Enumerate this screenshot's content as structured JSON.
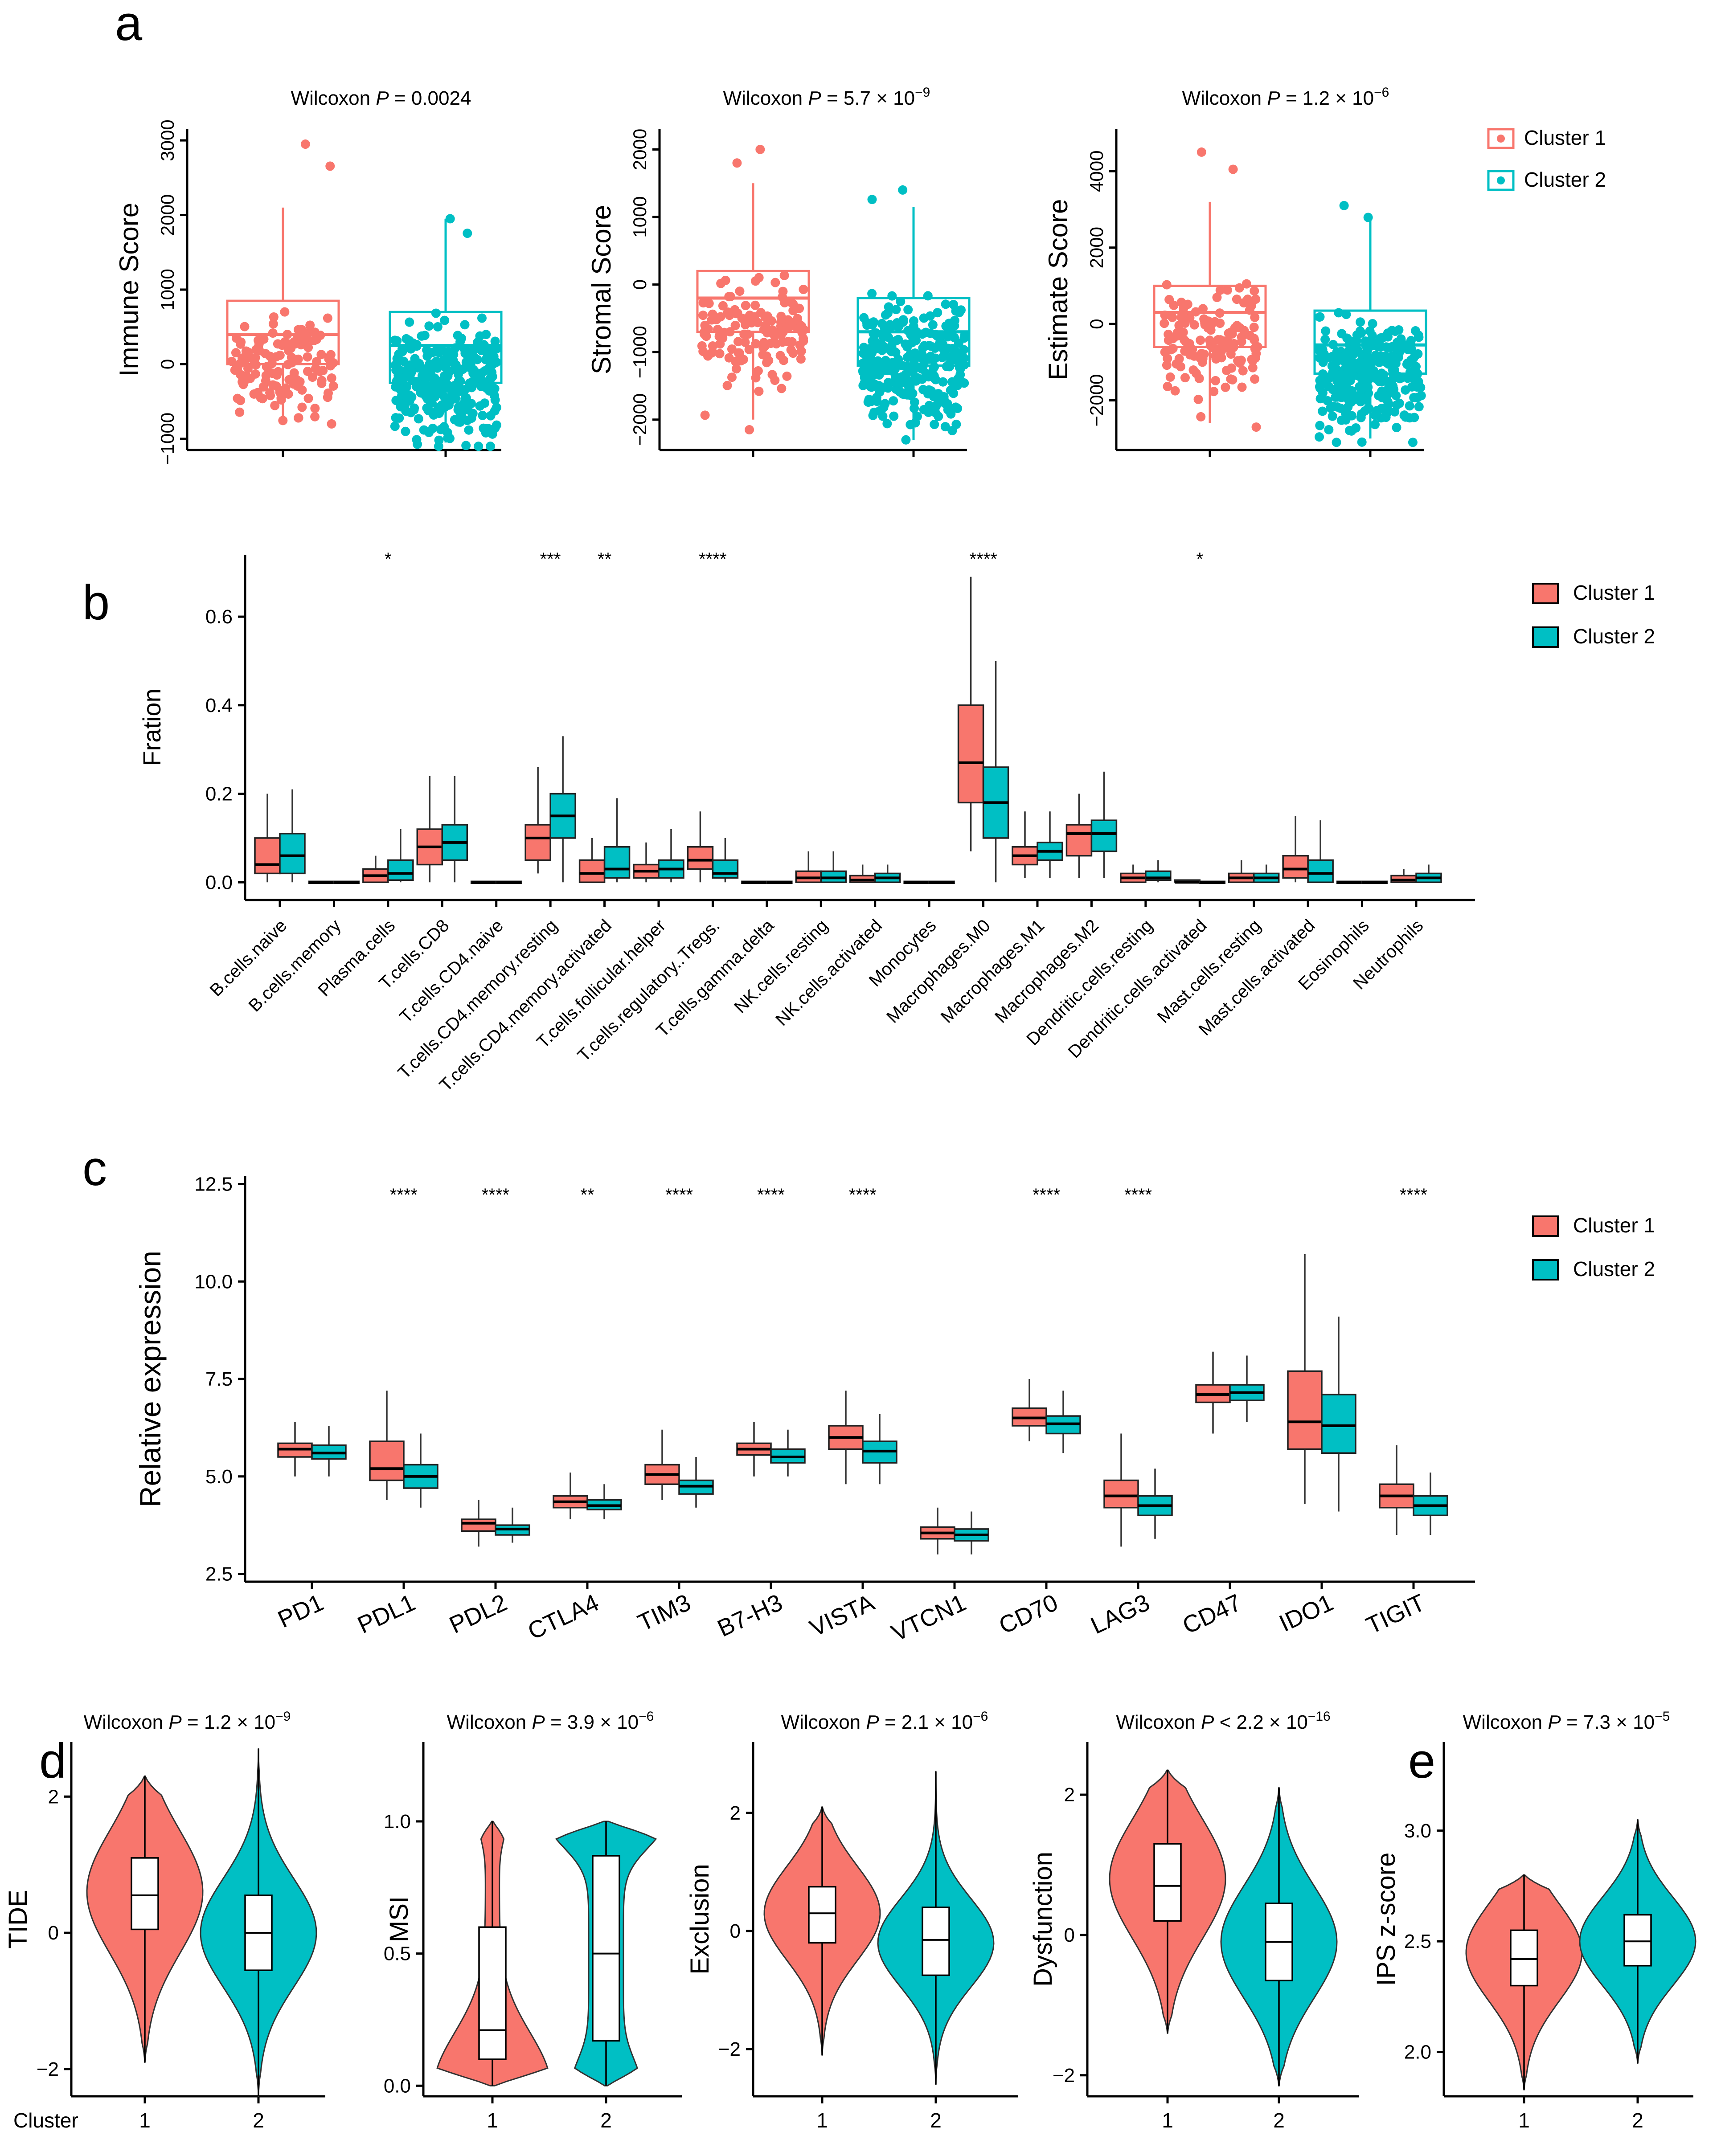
{
  "colors": {
    "cluster1": "#F8766D",
    "cluster2": "#00BFC4",
    "outline": "#000000"
  },
  "panels": [
    {
      "letter": "a"
    },
    {
      "letter": "b"
    },
    {
      "letter": "c"
    },
    {
      "letter": "d"
    },
    {
      "letter": "e"
    }
  ],
  "chart_data": [
    {
      "id": "a1",
      "type": "boxplot",
      "panel": "a",
      "title_prefix": "Wilcoxon ",
      "title_p": "P",
      "title_rest": " = 0.0024",
      "ylabel": "Immune Score",
      "ylim": [
        -1150,
        3150
      ],
      "yticks": [
        -1000,
        0,
        1000,
        2000,
        3000
      ],
      "groups": [
        {
          "name": "Cluster 1",
          "min": -800,
          "q1": 0,
          "median": 400,
          "q3": 850,
          "max": 2100,
          "n": 140,
          "lo": -800,
          "hi": 2950
        },
        {
          "name": "Cluster 2",
          "min": -1050,
          "q1": -250,
          "median": 250,
          "q3": 700,
          "max": 1950,
          "n": 300,
          "lo": -1100,
          "hi": 1950
        }
      ]
    },
    {
      "id": "a2",
      "type": "boxplot",
      "panel": "a",
      "title_prefix": "Wilcoxon ",
      "title_p": "P",
      "title_rest": " = 5.7 × 10",
      "title_exp": "−9",
      "ylabel": "Stromal Score",
      "ylim": [
        -2450,
        2300
      ],
      "yticks": [
        -2000,
        -1000,
        0,
        1000,
        2000
      ],
      "groups": [
        {
          "name": "Cluster 1",
          "min": -2000,
          "q1": -700,
          "median": -200,
          "q3": 200,
          "max": 1500,
          "n": 140,
          "lo": -2150,
          "hi": 2000
        },
        {
          "name": "Cluster 2",
          "min": -2300,
          "q1": -1200,
          "median": -700,
          "q3": -200,
          "max": 1150,
          "n": 300,
          "lo": -2300,
          "hi": 1400
        }
      ]
    },
    {
      "id": "a3",
      "type": "boxplot",
      "panel": "a",
      "title_prefix": "Wilcoxon ",
      "title_p": "P",
      "title_rest": " = 1.2 × 10",
      "title_exp": "−6",
      "ylabel": "Estimate Score",
      "ylim": [
        -3300,
        5100
      ],
      "yticks": [
        -2000,
        0,
        2000,
        4000
      ],
      "groups": [
        {
          "name": "Cluster 1",
          "min": -2600,
          "q1": -600,
          "median": 300,
          "q3": 1000,
          "max": 3200,
          "n": 140,
          "lo": -2700,
          "hi": 4500
        },
        {
          "name": "Cluster 2",
          "min": -3000,
          "q1": -1300,
          "median": -550,
          "q3": 350,
          "max": 2700,
          "n": 300,
          "lo": -3100,
          "hi": 3100
        }
      ]
    },
    {
      "id": "b",
      "type": "grouped_boxplot",
      "panel": "b",
      "ylabel": "Fration",
      "ylim": [
        -0.04,
        0.74
      ],
      "yticks": [
        0.0,
        0.2,
        0.4,
        0.6
      ],
      "ytick_labels": [
        "0.0",
        "0.2",
        "0.4",
        "0.6"
      ],
      "categories": [
        "B.cells.naive",
        "B.cells.memory",
        "Plasma.cells",
        "T.cells.CD8",
        "T.cells.CD4.naive",
        "T.cells.CD4.memory.resting",
        "T.cells.CD4.memory.activated",
        "T.cells.follicular.helper",
        "T.cells.regulatory..Tregs.",
        "T.cells.gamma.delta",
        "NK.cells.resting",
        "NK.cells.activated",
        "Monocytes",
        "Macrophages.M0",
        "Macrophages.M1",
        "Macrophages.M2",
        "Dendritic.cells.resting",
        "Dendritic.cells.activated",
        "Mast.cells.resting",
        "Mast.cells.activated",
        "Eosinophils",
        "Neutrophils"
      ],
      "significance": [
        "",
        "",
        "*",
        "",
        "",
        "***",
        "**",
        "",
        "****",
        "",
        "",
        "",
        "",
        "****",
        "",
        "",
        "",
        "*",
        "",
        "",
        "",
        ""
      ],
      "series": [
        {
          "name": "Cluster 1",
          "boxes": [
            [
              0.0,
              0.02,
              0.04,
              0.1,
              0.2
            ],
            [
              0,
              0,
              0,
              0,
              0
            ],
            [
              0.0,
              0.0,
              0.015,
              0.03,
              0.06
            ],
            [
              0.0,
              0.04,
              0.08,
              0.12,
              0.24
            ],
            [
              0,
              0,
              0,
              0,
              0
            ],
            [
              0.02,
              0.05,
              0.1,
              0.13,
              0.26
            ],
            [
              0.0,
              0.0,
              0.02,
              0.05,
              0.1
            ],
            [
              0.0,
              0.01,
              0.025,
              0.04,
              0.09
            ],
            [
              0.0,
              0.03,
              0.05,
              0.08,
              0.16
            ],
            [
              0,
              0,
              0,
              0,
              0
            ],
            [
              0.0,
              0.0,
              0.01,
              0.025,
              0.07
            ],
            [
              0.0,
              0.0,
              0.005,
              0.015,
              0.04
            ],
            [
              0,
              0,
              0,
              0,
              0
            ],
            [
              0.07,
              0.18,
              0.27,
              0.4,
              0.69
            ],
            [
              0.01,
              0.04,
              0.06,
              0.08,
              0.16
            ],
            [
              0.01,
              0.06,
              0.11,
              0.13,
              0.2
            ],
            [
              0.0,
              0.0,
              0.01,
              0.02,
              0.04
            ],
            [
              0,
              0,
              0,
              0.003,
              0.006
            ],
            [
              0.0,
              0.0,
              0.01,
              0.02,
              0.05
            ],
            [
              0.0,
              0.01,
              0.03,
              0.06,
              0.15
            ],
            [
              0,
              0,
              0,
              0,
              0
            ],
            [
              0.0,
              0.0,
              0.005,
              0.015,
              0.03
            ]
          ]
        },
        {
          "name": "Cluster 2",
          "boxes": [
            [
              0.0,
              0.02,
              0.06,
              0.11,
              0.21
            ],
            [
              0,
              0,
              0,
              0,
              0
            ],
            [
              0.0,
              0.005,
              0.02,
              0.05,
              0.12
            ],
            [
              0.0,
              0.05,
              0.09,
              0.13,
              0.24
            ],
            [
              0,
              0,
              0,
              0,
              0
            ],
            [
              0.0,
              0.1,
              0.15,
              0.2,
              0.33
            ],
            [
              0.0,
              0.01,
              0.03,
              0.08,
              0.19
            ],
            [
              0.0,
              0.01,
              0.03,
              0.05,
              0.12
            ],
            [
              0.0,
              0.01,
              0.02,
              0.05,
              0.1
            ],
            [
              0,
              0,
              0,
              0,
              0
            ],
            [
              0.0,
              0.0,
              0.01,
              0.025,
              0.07
            ],
            [
              0.0,
              0.0,
              0.01,
              0.02,
              0.04
            ],
            [
              0,
              0,
              0,
              0,
              0
            ],
            [
              0.0,
              0.1,
              0.18,
              0.26,
              0.5
            ],
            [
              0.01,
              0.05,
              0.07,
              0.09,
              0.16
            ],
            [
              0.01,
              0.07,
              0.11,
              0.14,
              0.25
            ],
            [
              0.0,
              0.005,
              0.01,
              0.025,
              0.05
            ],
            [
              0,
              0,
              0,
              0,
              0.002
            ],
            [
              0.0,
              0.0,
              0.01,
              0.02,
              0.04
            ],
            [
              0.0,
              0.0,
              0.02,
              0.05,
              0.14
            ],
            [
              0,
              0,
              0,
              0,
              0
            ],
            [
              0.0,
              0.0,
              0.01,
              0.02,
              0.04
            ]
          ]
        }
      ]
    },
    {
      "id": "c",
      "type": "grouped_boxplot",
      "panel": "c",
      "ylabel": "Relative expression",
      "ylim": [
        2.3,
        12.7
      ],
      "yticks": [
        2.5,
        5.0,
        7.5,
        10.0,
        12.5
      ],
      "ytick_labels": [
        "2.5",
        "5.0",
        "7.5",
        "10.0",
        "12.5"
      ],
      "categories": [
        "PD1",
        "PDL1",
        "PDL2",
        "CTLA4",
        "TIM3",
        "B7-H3",
        "VISTA",
        "VTCN1",
        "CD70",
        "LAG3",
        "CD47",
        "IDO1",
        "TIGIT"
      ],
      "significance": [
        "",
        "****",
        "****",
        "**",
        "****",
        "****",
        "****",
        "",
        "****",
        "****",
        "",
        "",
        "****"
      ],
      "series": [
        {
          "name": "Cluster 1",
          "boxes": [
            [
              5.0,
              5.5,
              5.7,
              5.85,
              6.4
            ],
            [
              4.4,
              4.9,
              5.2,
              5.9,
              7.2
            ],
            [
              3.2,
              3.6,
              3.8,
              3.9,
              4.4
            ],
            [
              3.9,
              4.2,
              4.35,
              4.5,
              5.1
            ],
            [
              4.4,
              4.8,
              5.05,
              5.3,
              6.2
            ],
            [
              5.0,
              5.55,
              5.7,
              5.85,
              6.4
            ],
            [
              4.8,
              5.7,
              6.0,
              6.3,
              7.2
            ],
            [
              3.0,
              3.4,
              3.55,
              3.7,
              4.2
            ],
            [
              5.9,
              6.3,
              6.5,
              6.75,
              7.5
            ],
            [
              3.2,
              4.2,
              4.5,
              4.9,
              6.1
            ],
            [
              6.1,
              6.9,
              7.1,
              7.35,
              8.2
            ],
            [
              4.3,
              5.7,
              6.4,
              7.7,
              10.7
            ],
            [
              3.5,
              4.2,
              4.5,
              4.8,
              5.8
            ]
          ]
        },
        {
          "name": "Cluster 2",
          "boxes": [
            [
              5.0,
              5.45,
              5.6,
              5.8,
              6.3
            ],
            [
              4.2,
              4.7,
              5.0,
              5.3,
              6.1
            ],
            [
              3.3,
              3.5,
              3.65,
              3.75,
              4.2
            ],
            [
              3.9,
              4.15,
              4.25,
              4.4,
              4.8
            ],
            [
              4.2,
              4.55,
              4.75,
              4.9,
              5.5
            ],
            [
              5.0,
              5.35,
              5.5,
              5.7,
              6.2
            ],
            [
              4.8,
              5.35,
              5.65,
              5.9,
              6.6
            ],
            [
              3.0,
              3.35,
              3.5,
              3.65,
              4.1
            ],
            [
              5.6,
              6.1,
              6.35,
              6.55,
              7.2
            ],
            [
              3.4,
              4.0,
              4.25,
              4.5,
              5.2
            ],
            [
              6.4,
              6.95,
              7.15,
              7.35,
              8.1
            ],
            [
              4.1,
              5.6,
              6.3,
              7.1,
              9.1
            ],
            [
              3.5,
              4.0,
              4.25,
              4.5,
              5.1
            ]
          ]
        }
      ]
    },
    {
      "id": "d1",
      "type": "violin",
      "panel": "d",
      "title_prefix": "Wilcoxon ",
      "title_p": "P",
      "title_rest": " = 1.2 × 10",
      "title_exp": "−9",
      "ylabel": "TIDE",
      "ylim": [
        -2.4,
        2.8
      ],
      "yticks": [
        -2,
        0,
        2
      ],
      "ytick_labels": [
        "−2",
        "0",
        "2"
      ],
      "x_title": "Cluster",
      "x_labels": [
        "1",
        "2"
      ],
      "groups": [
        {
          "min": -1.9,
          "max": 2.3,
          "mode": 0.6,
          "spread": 0.9,
          "q1": 0.05,
          "median": 0.55,
          "q3": 1.1
        },
        {
          "min": -2.4,
          "max": 2.7,
          "mode": 0.0,
          "spread": 0.8,
          "q1": -0.55,
          "median": 0.0,
          "q3": 0.55
        }
      ]
    },
    {
      "id": "d2",
      "type": "violin",
      "panel": "d",
      "title_prefix": "Wilcoxon ",
      "title_p": "P",
      "title_rest": " = 3.9 × 10",
      "title_exp": "−6",
      "ylabel": "MSI",
      "ylim": [
        -0.04,
        1.3
      ],
      "yticks": [
        0.0,
        0.5,
        1.0
      ],
      "ytick_labels": [
        "0.0",
        "0.5",
        "1.0"
      ],
      "x_title": "",
      "x_labels": [
        "1",
        "2"
      ],
      "groups": [
        {
          "min": 0.0,
          "max": 1.0,
          "mode": 0.08,
          "spread": 0.22,
          "q1": 0.1,
          "median": 0.21,
          "q3": 0.6,
          "shape": "bottom"
        },
        {
          "min": 0.0,
          "max": 1.0,
          "mode": 0.5,
          "spread": 0.5,
          "q1": 0.17,
          "median": 0.5,
          "q3": 0.87,
          "shape": "top"
        }
      ]
    },
    {
      "id": "d3",
      "type": "violin",
      "panel": "d",
      "title_prefix": "Wilcoxon ",
      "title_p": "P",
      "title_rest": " = 2.1 × 10",
      "title_exp": "−6",
      "ylabel": "Exclusion",
      "ylim": [
        -2.8,
        3.2
      ],
      "yticks": [
        -2,
        0,
        2
      ],
      "ytick_labels": [
        "−2",
        "0",
        "2"
      ],
      "x_title": "",
      "x_labels": [
        "1",
        "2"
      ],
      "groups": [
        {
          "min": -2.1,
          "max": 2.1,
          "mode": 0.3,
          "spread": 0.8,
          "q1": -0.2,
          "median": 0.3,
          "q3": 0.75
        },
        {
          "min": -2.6,
          "max": 2.7,
          "mode": -0.2,
          "spread": 0.75,
          "q1": -0.75,
          "median": -0.15,
          "q3": 0.4
        }
      ]
    },
    {
      "id": "d4",
      "type": "violin",
      "panel": "d",
      "title_prefix": "Wilcoxon ",
      "title_p": "P",
      "title_rest": " < 2.2 × 10",
      "title_exp": "−16",
      "ylabel": "Dysfunction",
      "ylim": [
        -2.3,
        2.75
      ],
      "yticks": [
        -2,
        0,
        2
      ],
      "ytick_labels": [
        "−2",
        "0",
        "2"
      ],
      "x_title": "",
      "x_labels": [
        "1",
        "2"
      ],
      "groups": [
        {
          "min": -1.4,
          "max": 2.35,
          "mode": 0.8,
          "spread": 0.85,
          "q1": 0.2,
          "median": 0.7,
          "q3": 1.3
        },
        {
          "min": -2.15,
          "max": 2.1,
          "mode": -0.1,
          "spread": 0.8,
          "q1": -0.65,
          "median": -0.1,
          "q3": 0.45
        }
      ]
    },
    {
      "id": "e",
      "type": "violin",
      "panel": "e",
      "title_prefix": "Wilcoxon ",
      "title_p": "P",
      "title_rest": " = 7.3 × 10",
      "title_exp": "−5",
      "ylabel": "IPS z-score",
      "ylim": [
        1.8,
        3.4
      ],
      "yticks": [
        2.0,
        2.5,
        3.0
      ],
      "ytick_labels": [
        "2.0",
        "2.5",
        "3.0"
      ],
      "x_title": "",
      "x_labels": [
        "1",
        "2"
      ],
      "groups": [
        {
          "min": 1.83,
          "max": 2.8,
          "mode": 2.45,
          "spread": 0.22,
          "q1": 2.3,
          "median": 2.42,
          "q3": 2.55
        },
        {
          "min": 1.95,
          "max": 3.05,
          "mode": 2.5,
          "spread": 0.2,
          "q1": 2.39,
          "median": 2.5,
          "q3": 2.62
        }
      ]
    }
  ],
  "legends": {
    "a": [
      "Cluster 1",
      "Cluster 2"
    ],
    "b": [
      "Cluster 1",
      "Cluster 2"
    ],
    "c": [
      "Cluster 1",
      "Cluster 2"
    ]
  }
}
